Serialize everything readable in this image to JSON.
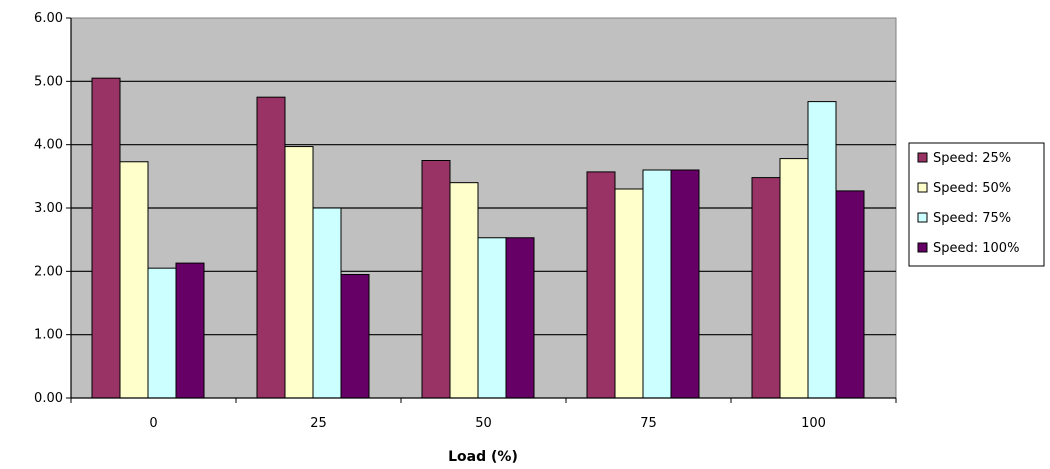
{
  "chart_data": {
    "type": "bar",
    "title": "",
    "xlabel": "Load (%)",
    "ylabel": "",
    "categories": [
      "0",
      "25",
      "50",
      "75",
      "100"
    ],
    "ylim": [
      0,
      6
    ],
    "ytick_labels": [
      "0.00",
      "1.00",
      "2.00",
      "3.00",
      "4.00",
      "5.00",
      "6.00"
    ],
    "grid": true,
    "legend_position": "right",
    "plot_background": "#c0c0c0",
    "series": [
      {
        "name": "Speed: 25%",
        "color": "#993366",
        "values": [
          5.05,
          4.75,
          3.75,
          3.57,
          3.48
        ]
      },
      {
        "name": "Speed: 50%",
        "color": "#ffffcc",
        "values": [
          3.73,
          3.97,
          3.4,
          3.3,
          3.78
        ]
      },
      {
        "name": "Speed: 75%",
        "color": "#ccffff",
        "values": [
          2.05,
          3.0,
          2.53,
          3.6,
          4.68
        ]
      },
      {
        "name": "Speed: 100%",
        "color": "#660066",
        "values": [
          2.13,
          1.95,
          2.53,
          3.6,
          3.27
        ]
      }
    ]
  }
}
